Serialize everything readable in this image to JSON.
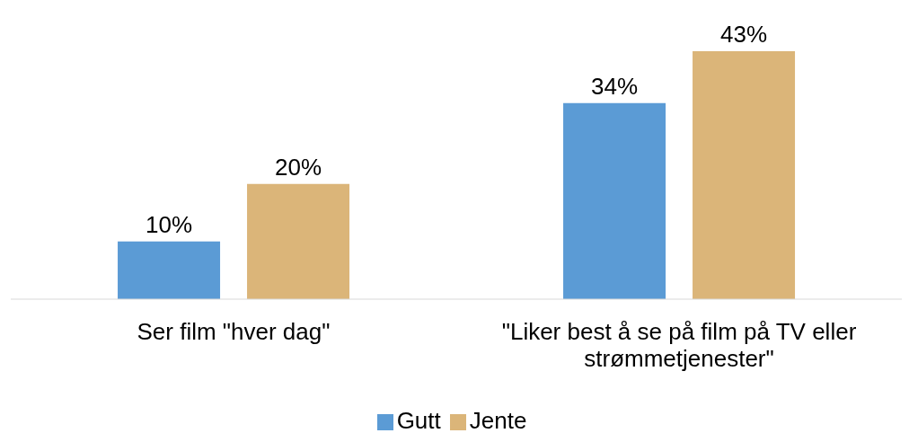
{
  "chart_data": {
    "type": "bar",
    "categories": [
      "Ser film \"hver dag\"",
      "\"Liker best å se på film på TV eller strømmetjenester\""
    ],
    "series": [
      {
        "name": "Gutt",
        "color": "#5b9bd5",
        "values": [
          10,
          34
        ],
        "value_labels": [
          "10%",
          "34%"
        ]
      },
      {
        "name": "Jente",
        "color": "#dbb579",
        "values": [
          20,
          43
        ],
        "value_labels": [
          "20%",
          "43%"
        ]
      }
    ],
    "legend": "bottom"
  }
}
